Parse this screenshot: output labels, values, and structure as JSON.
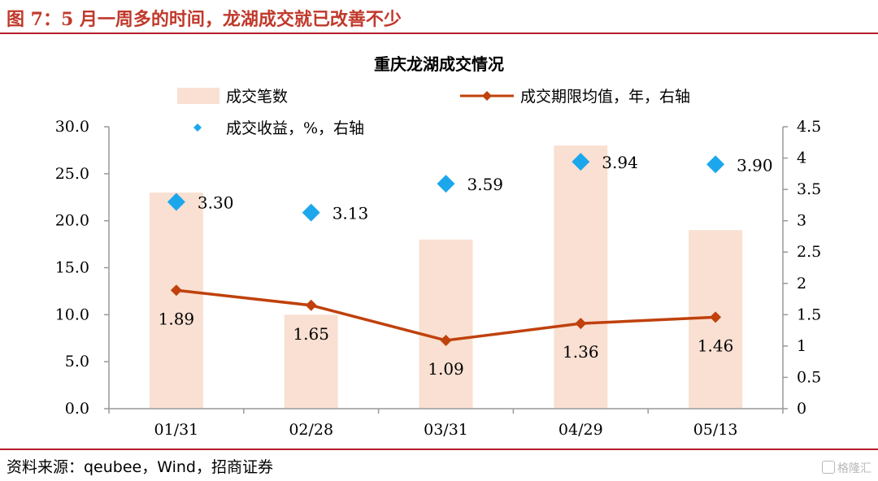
{
  "figure": {
    "title": "图 7：5 月一周多的时间，龙湖成交就已改善不少",
    "source": "资料来源：qeubee，Wind，招商证券",
    "watermark": "格隆汇"
  },
  "chart_data": {
    "type": "bar",
    "title": "重庆龙湖成交情况",
    "categories": [
      "01/31",
      "02/28",
      "03/31",
      "04/29",
      "05/13"
    ],
    "legend_placement": "top",
    "grid": false,
    "left_axis": {
      "ylim": [
        0,
        30
      ],
      "ticks": [
        "0.0",
        "5.0",
        "10.0",
        "15.0",
        "20.0",
        "25.0",
        "30.0"
      ]
    },
    "right_axis": {
      "ylim": [
        0,
        4.5
      ],
      "ticks": [
        "0",
        "0.5",
        "1",
        "1.5",
        "2",
        "2.5",
        "3",
        "3.5",
        "4",
        "4.5"
      ]
    },
    "series": [
      {
        "name": "成交笔数",
        "type": "bar",
        "axis": "left",
        "color": "#f9e0d2",
        "values": [
          23,
          10,
          18,
          28,
          19
        ]
      },
      {
        "name": "成交期限均值，年，右轴",
        "type": "line",
        "axis": "right",
        "color": "#c0410c",
        "values": [
          1.89,
          1.65,
          1.09,
          1.36,
          1.46
        ],
        "labels": [
          "1.89",
          "1.65",
          "1.09",
          "1.36",
          "1.46"
        ]
      },
      {
        "name": "成交收益，%，右轴",
        "type": "scatter",
        "axis": "right",
        "color": "#1ca7ec",
        "values": [
          3.3,
          3.13,
          3.59,
          3.94,
          3.9
        ],
        "labels": [
          "3.30",
          "3.13",
          "3.59",
          "3.94",
          "3.90"
        ]
      }
    ]
  }
}
